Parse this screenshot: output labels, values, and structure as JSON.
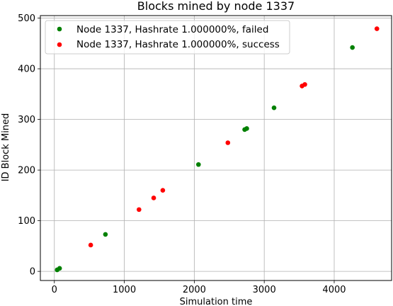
{
  "chart_data": {
    "type": "scatter",
    "title": "Blocks mined by node 1337",
    "xlabel": "Simulation time",
    "ylabel": "ID Block Mined",
    "xlim": [
      -200,
      4820
    ],
    "ylim": [
      -18,
      505
    ],
    "xticks": [
      0,
      1000,
      2000,
      3000,
      4000
    ],
    "yticks": [
      0,
      100,
      200,
      300,
      400,
      500
    ],
    "grid": true,
    "legend_position": "top-left",
    "series": [
      {
        "name": "Node 1337, Hashrate 1.000000%, failed",
        "color": "#008000",
        "points": [
          {
            "x": 40,
            "y": 3
          },
          {
            "x": 75,
            "y": 6
          },
          {
            "x": 730,
            "y": 73
          },
          {
            "x": 2060,
            "y": 211
          },
          {
            "x": 2720,
            "y": 280
          },
          {
            "x": 2750,
            "y": 282
          },
          {
            "x": 3140,
            "y": 323
          },
          {
            "x": 4260,
            "y": 442
          }
        ]
      },
      {
        "name": "Node 1337, Hashrate 1.000000%, success",
        "color": "#ff0000",
        "points": [
          {
            "x": 520,
            "y": 52
          },
          {
            "x": 1210,
            "y": 122
          },
          {
            "x": 1420,
            "y": 145
          },
          {
            "x": 1550,
            "y": 160
          },
          {
            "x": 2480,
            "y": 254
          },
          {
            "x": 3540,
            "y": 366
          },
          {
            "x": 3580,
            "y": 369
          },
          {
            "x": 4610,
            "y": 479
          }
        ]
      }
    ]
  }
}
